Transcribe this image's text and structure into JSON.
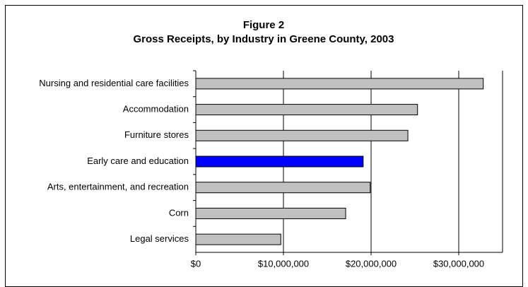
{
  "chart_data": {
    "type": "bar",
    "orientation": "horizontal",
    "title": "Figure 2",
    "subtitle": "Gross Receipts, by Industry in Greene County, 2003",
    "categories": [
      "Nursing and residential care facilities",
      "Accommodation",
      "Furniture stores",
      "Early care and education",
      "Arts, entertainment, and recreation",
      "Corn",
      "Legal services"
    ],
    "values": [
      32800000,
      25300000,
      24200000,
      19100000,
      19900000,
      17100000,
      9700000
    ],
    "colors": [
      "#c0c0c0",
      "#c0c0c0",
      "#c0c0c0",
      "#0000ff",
      "#c0c0c0",
      "#c0c0c0",
      "#c0c0c0"
    ],
    "xlim": [
      0,
      35000000
    ],
    "xticks": [
      {
        "value": 0,
        "label": "$0"
      },
      {
        "value": 10000000,
        "label": "$10,000,000"
      },
      {
        "value": 20000000,
        "label": "$20,000,000"
      },
      {
        "value": 30000000,
        "label": "$30,000,000"
      }
    ],
    "grid": true
  }
}
